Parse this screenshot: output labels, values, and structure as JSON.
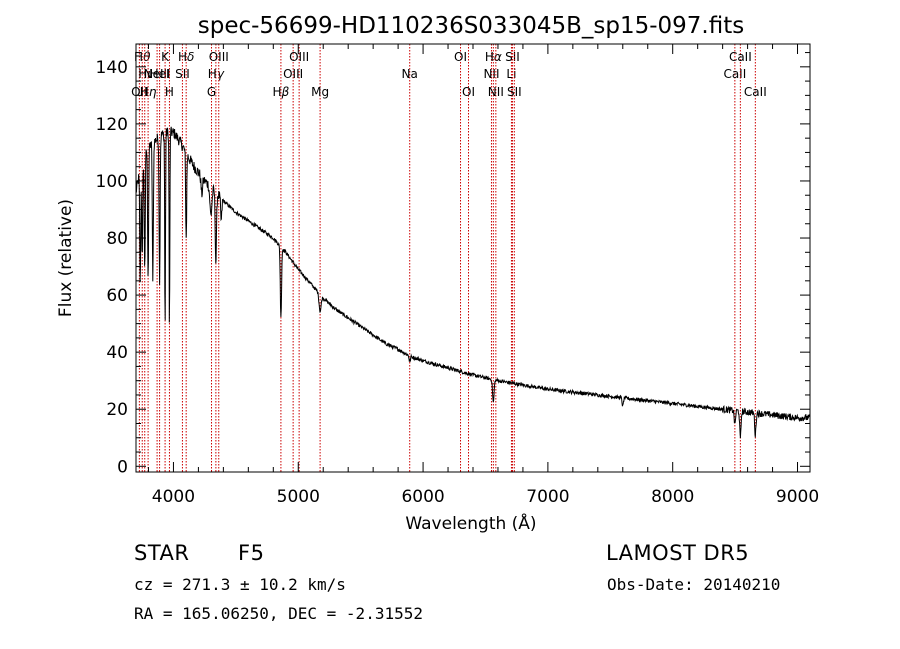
{
  "chart_data": {
    "type": "line",
    "title": "spec-56699-HD110236S033045B_sp15-097.fits",
    "xlabel": "Wavelength (Å)",
    "ylabel": "Flux (relative)",
    "xlim": [
      3700,
      9100
    ],
    "ylim": [
      -2,
      148
    ],
    "xticks": [
      4000,
      5000,
      6000,
      7000,
      8000,
      9000
    ],
    "yticks": [
      0,
      20,
      40,
      60,
      80,
      100,
      120,
      140
    ],
    "series": [
      {
        "name": "flux",
        "continuum": [
          [
            3700,
            96
          ],
          [
            3750,
            108
          ],
          [
            3800,
            112
          ],
          [
            3850,
            114
          ],
          [
            3900,
            116
          ],
          [
            3950,
            117
          ],
          [
            4000,
            117
          ],
          [
            4050,
            114
          ],
          [
            4100,
            110
          ],
          [
            4150,
            106
          ],
          [
            4200,
            103
          ],
          [
            4250,
            100
          ],
          [
            4300,
            98
          ],
          [
            4400,
            93
          ],
          [
            4500,
            89
          ],
          [
            4600,
            86
          ],
          [
            4700,
            83
          ],
          [
            4800,
            80
          ],
          [
            4900,
            75
          ],
          [
            5000,
            69
          ],
          [
            5100,
            64
          ],
          [
            5200,
            59
          ],
          [
            5300,
            55
          ],
          [
            5400,
            52
          ],
          [
            5500,
            49
          ],
          [
            5600,
            46
          ],
          [
            5700,
            43
          ],
          [
            5800,
            41
          ],
          [
            5900,
            38.5
          ],
          [
            6000,
            37
          ],
          [
            6200,
            34.5
          ],
          [
            6400,
            32
          ],
          [
            6600,
            30
          ],
          [
            6800,
            28.5
          ],
          [
            7000,
            27
          ],
          [
            7200,
            26
          ],
          [
            7400,
            25
          ],
          [
            7600,
            24
          ],
          [
            7800,
            23
          ],
          [
            8000,
            22
          ],
          [
            8200,
            21
          ],
          [
            8400,
            20
          ],
          [
            8600,
            19
          ],
          [
            8800,
            18
          ],
          [
            9000,
            17
          ],
          [
            9100,
            17
          ]
        ],
        "absorption": [
          [
            3734,
            40,
            4
          ],
          [
            3750,
            35,
            4
          ],
          [
            3770,
            40,
            4
          ],
          [
            3797,
            45,
            4
          ],
          [
            3835,
            50,
            4
          ],
          [
            3889,
            50,
            4
          ],
          [
            3933,
            70,
            3
          ],
          [
            3968,
            70,
            3
          ],
          [
            4102,
            30,
            4
          ],
          [
            4227,
            6,
            6
          ],
          [
            4300,
            10,
            8
          ],
          [
            4340,
            25,
            5
          ],
          [
            4383,
            8,
            5
          ],
          [
            4861,
            25,
            5
          ],
          [
            5175,
            6,
            8
          ],
          [
            5893,
            2,
            5
          ],
          [
            6563,
            8,
            6
          ],
          [
            7600,
            3,
            5
          ],
          [
            8498,
            5,
            5
          ],
          [
            8542,
            10,
            5
          ],
          [
            8662,
            8,
            5
          ]
        ]
      }
    ],
    "lines": [
      {
        "wavelength": 3727,
        "label": "OII",
        "row": 2,
        "sub": ""
      },
      {
        "wavelength": 3750,
        "label": "H",
        "row": 0,
        "sub": "θ"
      },
      {
        "wavelength": 3770,
        "label": "H",
        "row": 1,
        "sub": "ι"
      },
      {
        "wavelength": 3797,
        "label": "H",
        "row": 2,
        "sub": "η"
      },
      {
        "wavelength": 3869,
        "label": "NeIII",
        "row": 1,
        "sub": ""
      },
      {
        "wavelength": 3889,
        "label": "HeI",
        "row": 1,
        "sub": ""
      },
      {
        "wavelength": 3933,
        "label": "K",
        "row": 0,
        "sub": ""
      },
      {
        "wavelength": 3968,
        "label": "H",
        "row": 2,
        "sub": ""
      },
      {
        "wavelength": 4072,
        "label": "SII",
        "row": 1,
        "sub": ""
      },
      {
        "wavelength": 4102,
        "label": "H",
        "row": 0,
        "sub": "δ"
      },
      {
        "wavelength": 4305,
        "label": "G",
        "row": 2,
        "sub": ""
      },
      {
        "wavelength": 4340,
        "label": "H",
        "row": 1,
        "sub": "γ"
      },
      {
        "wavelength": 4363,
        "label": "OIII",
        "row": 0,
        "sub": ""
      },
      {
        "wavelength": 4861,
        "label": "H",
        "row": 2,
        "sub": "β"
      },
      {
        "wavelength": 4959,
        "label": "OIII",
        "row": 1,
        "sub": ""
      },
      {
        "wavelength": 5007,
        "label": "OIII",
        "row": 0,
        "sub": ""
      },
      {
        "wavelength": 5175,
        "label": "Mg",
        "row": 2,
        "sub": ""
      },
      {
        "wavelength": 5893,
        "label": "Na",
        "row": 1,
        "sub": ""
      },
      {
        "wavelength": 6300,
        "label": "OI",
        "row": 0,
        "sub": ""
      },
      {
        "wavelength": 6364,
        "label": "OI",
        "row": 2,
        "sub": ""
      },
      {
        "wavelength": 6548,
        "label": "NII",
        "row": 1,
        "sub": ""
      },
      {
        "wavelength": 6563,
        "label": "H",
        "row": 0,
        "sub": "α"
      },
      {
        "wavelength": 6583,
        "label": "NII",
        "row": 2,
        "sub": ""
      },
      {
        "wavelength": 6708,
        "label": "Li",
        "row": 1,
        "sub": ""
      },
      {
        "wavelength": 6716,
        "label": "SII",
        "row": 0,
        "sub": ""
      },
      {
        "wavelength": 6731,
        "label": "SII",
        "row": 2,
        "sub": ""
      },
      {
        "wavelength": 8498,
        "label": "CaII",
        "row": 1,
        "sub": ""
      },
      {
        "wavelength": 8542,
        "label": "CaII",
        "row": 0,
        "sub": ""
      },
      {
        "wavelength": 8662,
        "label": "CaII",
        "row": 2,
        "sub": ""
      }
    ],
    "line_color": "#cc0000"
  },
  "info": {
    "class": "STAR",
    "subclass": "F5",
    "survey": "LAMOST DR5",
    "cz": "cz = 271.3 ± 10.2 km/s",
    "obsdate": "Obs-Date: 20140210",
    "coords": "RA = 165.06250, DEC =  -2.31552"
  }
}
